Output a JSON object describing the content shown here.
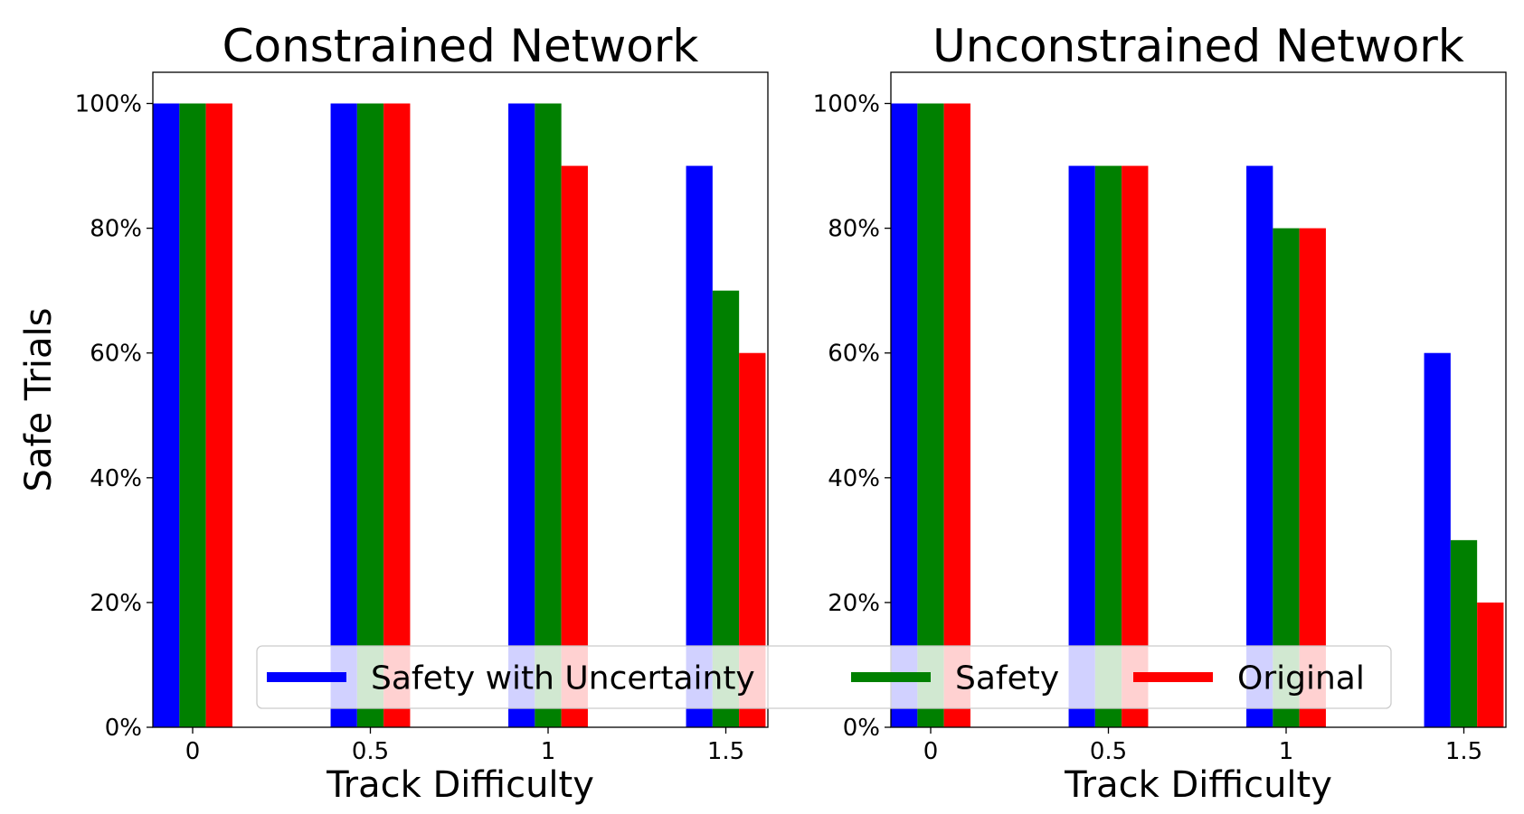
{
  "chart_data": [
    {
      "type": "bar",
      "title": "Constrained Network",
      "xlabel": "Track Difficulty",
      "ylabel": "Safe Trials",
      "categories": [
        "0",
        "0.5",
        "1",
        "1.5"
      ],
      "ylim": [
        0,
        105
      ],
      "yticks": [
        0,
        20,
        40,
        60,
        80,
        100
      ],
      "ytick_labels": [
        "0%",
        "20%",
        "40%",
        "60%",
        "80%",
        "100%"
      ],
      "series": [
        {
          "name": "Safety with Uncertainty",
          "color": "#0000ff",
          "values": [
            100,
            100,
            100,
            90
          ]
        },
        {
          "name": "Safety",
          "color": "#008000",
          "values": [
            100,
            100,
            100,
            70
          ]
        },
        {
          "name": "Original",
          "color": "#ff0000",
          "values": [
            100,
            100,
            90,
            60
          ]
        }
      ]
    },
    {
      "type": "bar",
      "title": "Unconstrained Network",
      "xlabel": "Track Difficulty",
      "ylabel": "",
      "categories": [
        "0",
        "0.5",
        "1",
        "1.5"
      ],
      "ylim": [
        0,
        105
      ],
      "yticks": [
        0,
        20,
        40,
        60,
        80,
        100
      ],
      "ytick_labels": [
        "0%",
        "20%",
        "40%",
        "60%",
        "80%",
        "100%"
      ],
      "series": [
        {
          "name": "Safety with Uncertainty",
          "color": "#0000ff",
          "values": [
            100,
            90,
            90,
            60
          ]
        },
        {
          "name": "Safety",
          "color": "#008000",
          "values": [
            100,
            90,
            80,
            30
          ]
        },
        {
          "name": "Original",
          "color": "#ff0000",
          "values": [
            100,
            90,
            80,
            20
          ]
        }
      ]
    }
  ],
  "legend": {
    "placement": "bottom-center",
    "entries": [
      {
        "label": "Safety with Uncertainty",
        "color": "#0000ff"
      },
      {
        "label": "Safety",
        "color": "#008000"
      },
      {
        "label": "Original",
        "color": "#ff0000"
      }
    ]
  }
}
